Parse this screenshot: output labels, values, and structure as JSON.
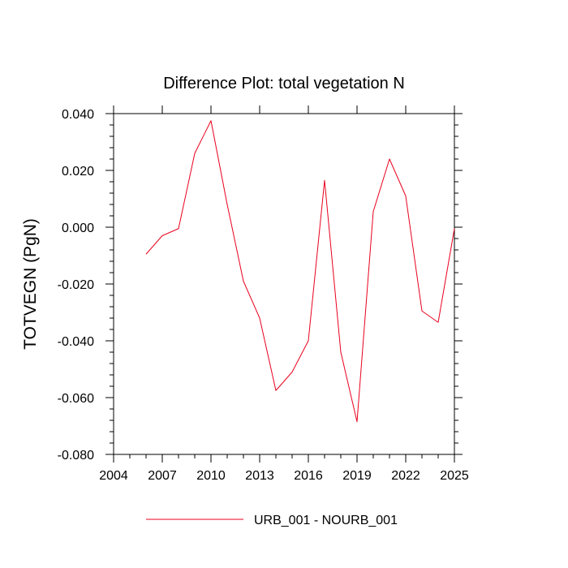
{
  "chart_data": {
    "type": "line",
    "title": "Difference Plot: total vegetation N",
    "xlabel": "",
    "ylabel": "TOTVEGN  (PgN)",
    "xlim": [
      2004,
      2025
    ],
    "ylim": [
      -0.08,
      0.04
    ],
    "xticks": [
      2004,
      2007,
      2010,
      2013,
      2016,
      2019,
      2022,
      2025
    ],
    "xtick_labels": [
      "2004",
      "2007",
      "2010",
      "2013",
      "2016",
      "2019",
      "2022",
      "2025"
    ],
    "yticks": [
      -0.08,
      -0.06,
      -0.04,
      -0.02,
      0.0,
      0.02,
      0.04
    ],
    "ytick_labels": [
      "-0.080",
      "-0.060",
      "-0.040",
      "-0.020",
      "0.000",
      "0.020",
      "0.040"
    ],
    "grid": false,
    "legend_position": "bottom-center",
    "series": [
      {
        "name": "URB_001 - NOURB_001",
        "color": "#e8001c",
        "x": [
          2006,
          2007,
          2008,
          2009,
          2010,
          2011,
          2012,
          2013,
          2014,
          2015,
          2016,
          2017,
          2018,
          2019,
          2020,
          2021,
          2022,
          2023,
          2024,
          2025
        ],
        "y": [
          -0.0095,
          -0.003,
          -0.0005,
          0.026,
          0.0375,
          0.008,
          -0.019,
          -0.032,
          -0.0575,
          -0.051,
          -0.04,
          0.0165,
          -0.044,
          -0.0685,
          0.0055,
          0.024,
          0.011,
          -0.0295,
          -0.0335,
          -0.0005
        ]
      }
    ]
  }
}
